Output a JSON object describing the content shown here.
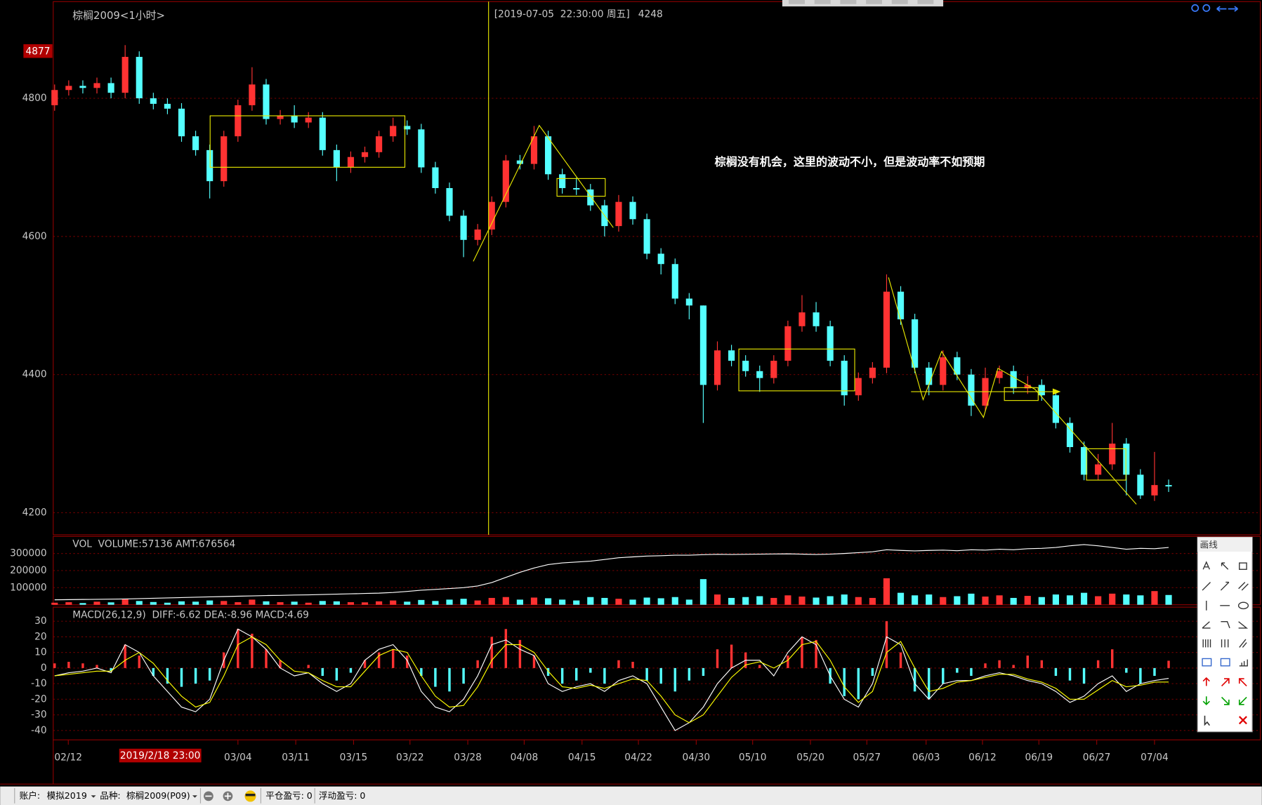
{
  "chart_data": [
    {
      "type": "candlestick",
      "title": "棕榈2009<1小时>",
      "cursor_label": "[2019-07-05  22:30:00 周五]",
      "cursor_value": 4248,
      "high_marker": 4877,
      "annotation": "棕榈没有机会，这里的波动不小，但是波动率不如预期",
      "up_color": "#ff3232",
      "down_color": "#54ffff",
      "grid": true,
      "xlim": [
        -0.1,
        85.5
      ],
      "ylim": [
        4168,
        4940
      ],
      "yticks": [
        4200,
        4400,
        4600,
        4800
      ],
      "open": [
        4790,
        4812,
        4818,
        4815,
        4822,
        4808,
        4860,
        4800,
        4792,
        4785,
        4745,
        4725,
        4680,
        4745,
        4790,
        4820,
        4770,
        4775,
        4765,
        4772,
        4725,
        4700,
        4715,
        4722,
        4745,
        4760,
        4755,
        4700,
        4670,
        4630,
        4595,
        4610,
        4650,
        4710,
        4705,
        4745,
        4690,
        4670,
        4668,
        4645,
        4615,
        4650,
        4625,
        4575,
        4560,
        4510,
        4500,
        4385,
        4435,
        4420,
        4405,
        4395,
        4420,
        4470,
        4490,
        4470,
        4420,
        4370,
        4395,
        4410,
        4520,
        4480,
        4410,
        4385,
        4425,
        4400,
        4355,
        4395,
        4405,
        4380,
        4385,
        4370,
        4330,
        4295,
        4255,
        4270,
        4300,
        4255,
        4225,
        4240
      ],
      "high": [
        4820,
        4826,
        4826,
        4830,
        4830,
        4877,
        4868,
        4808,
        4800,
        4793,
        4753,
        4733,
        4753,
        4798,
        4845,
        4828,
        4783,
        4790,
        4780,
        4780,
        4733,
        4723,
        4730,
        4753,
        4772,
        4768,
        4763,
        4708,
        4678,
        4638,
        4618,
        4658,
        4718,
        4718,
        4760,
        4753,
        4698,
        4685,
        4676,
        4653,
        4660,
        4658,
        4633,
        4583,
        4568,
        4518,
        4500,
        4448,
        4443,
        4428,
        4413,
        4428,
        4478,
        4515,
        4505,
        4478,
        4428,
        4403,
        4418,
        4545,
        4528,
        4488,
        4418,
        4435,
        4433,
        4408,
        4410,
        4413,
        4413,
        4398,
        4393,
        4378,
        4338,
        4303,
        4285,
        4330,
        4308,
        4263,
        4288,
        4248
      ],
      "low": [
        4782,
        4804,
        4807,
        4807,
        4800,
        4800,
        4792,
        4784,
        4777,
        4737,
        4717,
        4655,
        4672,
        4737,
        4782,
        4762,
        4762,
        4757,
        4757,
        4717,
        4680,
        4692,
        4707,
        4714,
        4737,
        4747,
        4692,
        4662,
        4622,
        4570,
        4587,
        4602,
        4642,
        4697,
        4697,
        4682,
        4662,
        4660,
        4637,
        4600,
        4607,
        4617,
        4567,
        4545,
        4502,
        4480,
        4330,
        4377,
        4412,
        4397,
        4375,
        4387,
        4412,
        4462,
        4462,
        4412,
        4355,
        4362,
        4387,
        4402,
        4472,
        4402,
        4370,
        4377,
        4392,
        4340,
        4347,
        4387,
        4372,
        4372,
        4362,
        4322,
        4287,
        4247,
        4247,
        4262,
        4225,
        4220,
        4217,
        4230
      ],
      "close": [
        4812,
        4818,
        4815,
        4822,
        4808,
        4860,
        4800,
        4792,
        4785,
        4745,
        4725,
        4680,
        4745,
        4790,
        4820,
        4770,
        4775,
        4765,
        4772,
        4725,
        4700,
        4715,
        4722,
        4745,
        4760,
        4755,
        4700,
        4670,
        4630,
        4595,
        4610,
        4650,
        4710,
        4705,
        4745,
        4690,
        4670,
        4668,
        4645,
        4615,
        4650,
        4625,
        4575,
        4560,
        4510,
        4500,
        4385,
        4435,
        4420,
        4405,
        4395,
        4420,
        4470,
        4490,
        4470,
        4420,
        4370,
        4395,
        4410,
        4520,
        4480,
        4410,
        4385,
        4425,
        4400,
        4355,
        4395,
        4405,
        4380,
        4385,
        4370,
        4330,
        4295,
        4255,
        4270,
        4300,
        4255,
        4225,
        4240,
        4238
      ]
    },
    {
      "type": "volume",
      "title": "VOL  VOLUME:57136 AMT:676564",
      "grid": true,
      "xlim": [
        -0.1,
        85.5
      ],
      "ylim": [
        0,
        400000
      ],
      "yticks": [
        {
          "value": 300000,
          "label": "300000"
        },
        {
          "value": 200000,
          "label": "200000"
        },
        {
          "value": 100000,
          "label": "100000"
        }
      ],
      "values": [
        12000,
        15000,
        10000,
        18000,
        14000,
        35000,
        22000,
        16000,
        12000,
        20000,
        18000,
        25000,
        22000,
        15000,
        30000,
        20000,
        15000,
        18000,
        12000,
        22000,
        20000,
        15000,
        14000,
        20000,
        25000,
        18000,
        28000,
        22000,
        30000,
        35000,
        25000,
        40000,
        45000,
        30000,
        42000,
        38000,
        30000,
        25000,
        45000,
        40000,
        35000,
        30000,
        42000,
        38000,
        45000,
        30000,
        150000,
        60000,
        40000,
        45000,
        50000,
        40000,
        55000,
        48000,
        42000,
        50000,
        60000,
        45000,
        40000,
        155000,
        70000,
        55000,
        60000,
        45000,
        50000,
        65000,
        48000,
        55000,
        40000,
        52000,
        45000,
        60000,
        55000,
        70000,
        50000,
        65000,
        60000,
        55000,
        80000,
        57136
      ],
      "line_color": "#ffffff",
      "line_values": [
        29000,
        30000,
        31000,
        32000,
        33000,
        34000,
        36000,
        38000,
        40000,
        42000,
        44000,
        46000,
        48000,
        50000,
        52000,
        54000,
        55000,
        57000,
        58000,
        60000,
        62000,
        64000,
        66000,
        68000,
        72000,
        78000,
        85000,
        90000,
        95000,
        100000,
        110000,
        130000,
        160000,
        190000,
        215000,
        235000,
        245000,
        250000,
        255000,
        265000,
        275000,
        280000,
        285000,
        287000,
        290000,
        290000,
        293000,
        295000,
        294000,
        295000,
        296000,
        297000,
        298000,
        296000,
        294000,
        296000,
        300000,
        305000,
        310000,
        322000,
        318000,
        315000,
        318000,
        320000,
        316000,
        322000,
        320000,
        325000,
        322000,
        328000,
        330000,
        335000,
        345000,
        352000,
        345000,
        335000,
        325000,
        330000,
        328000,
        335000
      ]
    },
    {
      "type": "macd",
      "title": "MACD(26,12,9)  DIFF:-6.62 DEA:-8.96 MACD:4.69",
      "grid": true,
      "up_color": "#ff3232",
      "down_color": "#54ffff",
      "xlim": [
        -0.1,
        85.5
      ],
      "ylim": [
        -46,
        39
      ],
      "yticks": [
        30,
        20,
        10,
        0,
        -10,
        -20,
        -30,
        -40
      ],
      "xticks": [
        {
          "value": 0.97,
          "label": "02/12"
        },
        {
          "value": 13.0,
          "label": "03/04"
        },
        {
          "value": 17.1,
          "label": "03/11"
        },
        {
          "value": 21.2,
          "label": "03/15"
        },
        {
          "value": 25.2,
          "label": "03/22"
        },
        {
          "value": 29.3,
          "label": "03/28"
        },
        {
          "value": 33.3,
          "label": "04/08"
        },
        {
          "value": 37.4,
          "label": "04/15"
        },
        {
          "value": 41.4,
          "label": "04/22"
        },
        {
          "value": 45.5,
          "label": "04/30"
        },
        {
          "value": 49.5,
          "label": "05/10"
        },
        {
          "value": 53.6,
          "label": "05/20"
        },
        {
          "value": 57.6,
          "label": "05/27"
        },
        {
          "value": 61.8,
          "label": "06/03"
        },
        {
          "value": 65.8,
          "label": "06/12"
        },
        {
          "value": 69.8,
          "label": "06/19"
        },
        {
          "value": 73.9,
          "label": "06/27"
        },
        {
          "value": 78.0,
          "label": "07/04"
        }
      ],
      "x_cursor_label": "2019/2/18 23:00",
      "histogram": [
        3,
        4,
        3,
        2,
        -2,
        15,
        8,
        -5,
        -10,
        -12,
        -10,
        -8,
        10,
        25,
        22,
        12,
        5,
        0,
        2,
        -5,
        -8,
        -3,
        5,
        10,
        12,
        8,
        -5,
        -12,
        -15,
        -10,
        5,
        20,
        25,
        18,
        8,
        -5,
        -10,
        -8,
        -3,
        -10,
        5,
        4,
        -8,
        -10,
        -15,
        -8,
        -5,
        12,
        15,
        10,
        2,
        0,
        8,
        20,
        18,
        -10,
        -18,
        -20,
        -5,
        30,
        10,
        -15,
        -20,
        -10,
        -3,
        -5,
        3,
        5,
        2,
        8,
        5,
        -5,
        -8,
        -10,
        5,
        12,
        -3,
        -10,
        -5,
        4.69
      ],
      "series": [
        {
          "color": "#ffffff",
          "values": [
            -5,
            -3,
            -2,
            0,
            -3,
            15,
            10,
            -5,
            -15,
            -25,
            -28,
            -20,
            5,
            25,
            20,
            12,
            0,
            -5,
            -3,
            -10,
            -15,
            -10,
            5,
            12,
            15,
            5,
            -15,
            -25,
            -28,
            -20,
            -5,
            15,
            18,
            12,
            8,
            -10,
            -15,
            -12,
            -10,
            -15,
            -8,
            -5,
            -10,
            -25,
            -40,
            -35,
            -25,
            -10,
            0,
            5,
            5,
            -5,
            10,
            20,
            15,
            -5,
            -20,
            -25,
            -10,
            20,
            15,
            -10,
            -20,
            -10,
            -8,
            -8,
            -5,
            -3,
            -5,
            -8,
            -10,
            -15,
            -22,
            -18,
            -10,
            -5,
            -15,
            -10,
            -8,
            -6.62
          ]
        },
        {
          "color": "#ffff00",
          "values": [
            -5,
            -4,
            -3,
            -2,
            -2,
            5,
            10,
            3,
            -8,
            -18,
            -25,
            -22,
            -5,
            15,
            20,
            15,
            5,
            -2,
            -3,
            -8,
            -12,
            -12,
            -2,
            8,
            12,
            10,
            -5,
            -18,
            -25,
            -24,
            -12,
            5,
            15,
            15,
            10,
            -2,
            -12,
            -13,
            -11,
            -13,
            -10,
            -7,
            -8,
            -18,
            -30,
            -35,
            -30,
            -18,
            -6,
            2,
            4,
            0,
            5,
            15,
            17,
            5,
            -12,
            -22,
            -15,
            10,
            17,
            0,
            -15,
            -13,
            -9,
            -8,
            -6,
            -4,
            -4,
            -7,
            -9,
            -13,
            -20,
            -20,
            -14,
            -8,
            -12,
            -11,
            -9,
            -8.96
          ]
        }
      ]
    }
  ],
  "drawing_panel": {
    "title": "画线"
  },
  "status_bar": {
    "account_label": "账户:",
    "account": "模拟2019",
    "symbol_label": "品种:",
    "symbol": "棕榈2009(P09)",
    "closed_pnl_label": "平仓盈亏:",
    "closed_pnl": 0,
    "float_pnl_label": "浮动盈亏:",
    "float_pnl": 0
  }
}
